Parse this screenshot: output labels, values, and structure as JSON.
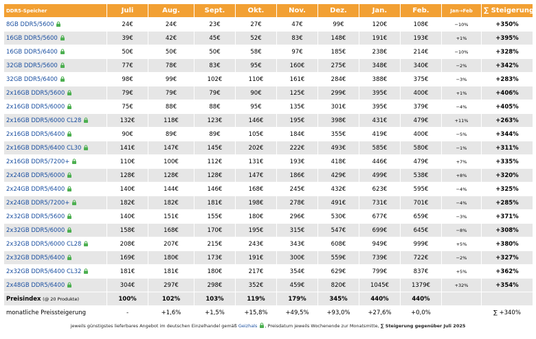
{
  "table": {
    "header": [
      "DDR5-Speicher",
      "Juli",
      "Aug.",
      "Sept.",
      "Okt.",
      "Nov.",
      "Dez.",
      "Jan.",
      "Feb.",
      "Jan→Feb",
      "∑ Steigerung"
    ],
    "rows": [
      {
        "name": "8GB DDR5/5600",
        "prices": [
          "24€",
          "24€",
          "23€",
          "27€",
          "47€",
          "99€",
          "120€",
          "108€"
        ],
        "change": "−10%",
        "total": "+350%"
      },
      {
        "name": "16GB DDR5/5600",
        "prices": [
          "39€",
          "42€",
          "45€",
          "52€",
          "83€",
          "148€",
          "191€",
          "193€"
        ],
        "change": "+1%",
        "total": "+395%"
      },
      {
        "name": "16GB DDR5/6400",
        "prices": [
          "50€",
          "50€",
          "50€",
          "58€",
          "97€",
          "185€",
          "238€",
          "214€"
        ],
        "change": "−10%",
        "total": "+328%"
      },
      {
        "name": "32GB DDR5/5600",
        "prices": [
          "77€",
          "78€",
          "83€",
          "95€",
          "160€",
          "275€",
          "348€",
          "340€"
        ],
        "change": "−2%",
        "total": "+342%"
      },
      {
        "name": "32GB DDR5/6400",
        "prices": [
          "98€",
          "99€",
          "102€",
          "110€",
          "161€",
          "284€",
          "388€",
          "375€"
        ],
        "change": "−3%",
        "total": "+283%"
      },
      {
        "name": "2x16GB DDR5/5600",
        "prices": [
          "79€",
          "79€",
          "79€",
          "90€",
          "125€",
          "299€",
          "395€",
          "400€"
        ],
        "change": "+1%",
        "total": "+406%"
      },
      {
        "name": "2x16GB DDR5/6000",
        "prices": [
          "75€",
          "88€",
          "88€",
          "95€",
          "135€",
          "301€",
          "395€",
          "379€"
        ],
        "change": "−4%",
        "total": "+405%"
      },
      {
        "name": "2x16GB DDR5/6000 CL28",
        "prices": [
          "132€",
          "118€",
          "123€",
          "146€",
          "195€",
          "398€",
          "431€",
          "479€"
        ],
        "change": "+11%",
        "total": "+263%"
      },
      {
        "name": "2x16GB DDR5/6400",
        "prices": [
          "90€",
          "89€",
          "89€",
          "105€",
          "184€",
          "355€",
          "419€",
          "400€"
        ],
        "change": "−5%",
        "total": "+344%"
      },
      {
        "name": "2x16GB DDR5/6400 CL30",
        "prices": [
          "141€",
          "147€",
          "145€",
          "202€",
          "222€",
          "493€",
          "585€",
          "580€"
        ],
        "change": "−1%",
        "total": "+311%"
      },
      {
        "name": "2x16GB DDR5/7200+",
        "prices": [
          "110€",
          "100€",
          "112€",
          "131€",
          "193€",
          "418€",
          "446€",
          "479€"
        ],
        "change": "+7%",
        "total": "+335%"
      },
      {
        "name": "2x24GB DDR5/6000",
        "prices": [
          "128€",
          "128€",
          "128€",
          "147€",
          "186€",
          "429€",
          "499€",
          "538€"
        ],
        "change": "+8%",
        "total": "+320%"
      },
      {
        "name": "2x24GB DDR5/6400",
        "prices": [
          "140€",
          "144€",
          "146€",
          "168€",
          "245€",
          "432€",
          "623€",
          "595€"
        ],
        "change": "−4%",
        "total": "+325%"
      },
      {
        "name": "2x24GB DDR5/7200+",
        "prices": [
          "182€",
          "182€",
          "181€",
          "198€",
          "278€",
          "491€",
          "731€",
          "701€"
        ],
        "change": "−4%",
        "total": "+285%"
      },
      {
        "name": "2x32GB DDR5/5600",
        "prices": [
          "140€",
          "151€",
          "155€",
          "180€",
          "296€",
          "530€",
          "677€",
          "659€"
        ],
        "change": "−3%",
        "total": "+371%"
      },
      {
        "name": "2x32GB DDR5/6000",
        "prices": [
          "158€",
          "168€",
          "170€",
          "195€",
          "315€",
          "547€",
          "699€",
          "645€"
        ],
        "change": "−8%",
        "total": "+308%"
      },
      {
        "name": "2x32GB DDR5/6000 CL28",
        "prices": [
          "208€",
          "207€",
          "215€",
          "243€",
          "343€",
          "608€",
          "949€",
          "999€"
        ],
        "change": "+5%",
        "total": "+380%"
      },
      {
        "name": "2x32GB DDR5/6400",
        "prices": [
          "169€",
          "180€",
          "173€",
          "191€",
          "300€",
          "559€",
          "739€",
          "722€"
        ],
        "change": "−2%",
        "total": "+327%"
      },
      {
        "name": "2x32GB DDR5/6400 CL32",
        "prices": [
          "181€",
          "181€",
          "180€",
          "217€",
          "354€",
          "629€",
          "799€",
          "837€"
        ],
        "change": "+5%",
        "total": "+362%"
      },
      {
        "name": "2x48GB DDR5/6400",
        "prices": [
          "304€",
          "297€",
          "298€",
          "352€",
          "459€",
          "820€",
          "1045€",
          "1379€"
        ],
        "change": "+32%",
        "total": "+354%"
      }
    ],
    "index": {
      "label": "Preisindex",
      "note": "(@ 20 Produkte)",
      "values": [
        "100%",
        "102%",
        "103%",
        "119%",
        "179%",
        "345%",
        "440%",
        "440%"
      ]
    },
    "monthly": {
      "label": "monatliche Preissteigerung",
      "values": [
        "-",
        "+1,6%",
        "+1,5%",
        "+15,8%",
        "+49,5%",
        "+93,0%",
        "+27,6%",
        "+0,0%"
      ],
      "total": "∑ +340%"
    }
  },
  "footer": {
    "text1": "jeweils günstigstes lieferbares Angebot im deutschen Einzelhandel gemäß",
    "link": "Geizhals",
    "text2": ", Preisdatum jeweils Wochenende zur Monatsmitte,",
    "bold": "∑ Steigerung gegenüber Juli 2025"
  }
}
